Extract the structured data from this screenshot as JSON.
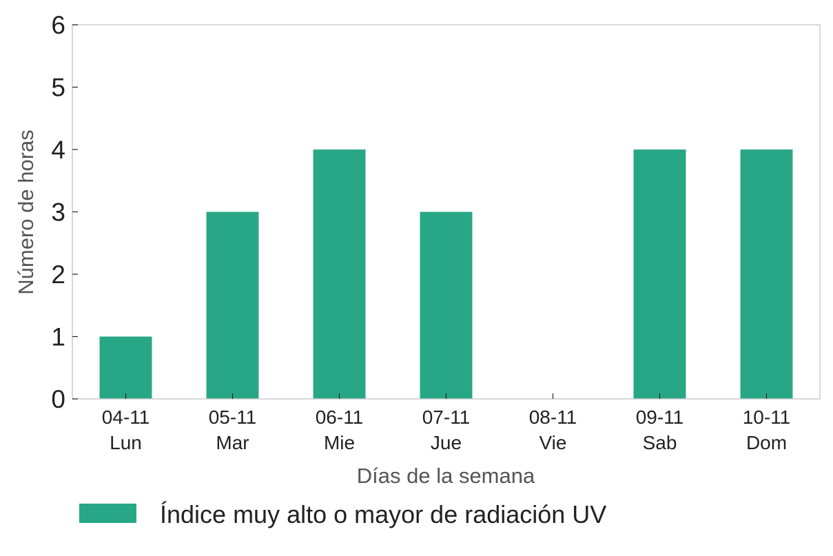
{
  "chart_data": {
    "type": "bar",
    "categories": [
      "04-11",
      "05-11",
      "06-11",
      "07-11",
      "08-11",
      "09-11",
      "10-11"
    ],
    "category_days": [
      "Lun",
      "Mar",
      "Mie",
      "Jue",
      "Vie",
      "Sab",
      "Dom"
    ],
    "values": [
      1,
      3,
      4,
      3,
      0,
      4,
      4
    ],
    "title": "",
    "xlabel": "Días de la semana",
    "ylabel": "Número de horas",
    "ylim": [
      0,
      6
    ],
    "yticks": [
      0,
      1,
      2,
      3,
      4,
      5,
      6
    ],
    "grid": false,
    "legend": {
      "placement": "bottom-left",
      "entries": [
        {
          "label": "Índice muy alto o mayor de radiación UV",
          "color": "#28a787"
        }
      ]
    },
    "series": [
      {
        "name": "Índice muy alto o mayor de radiación UV",
        "color": "#28a787",
        "values": [
          1,
          3,
          4,
          3,
          0,
          4,
          4
        ]
      }
    ]
  }
}
